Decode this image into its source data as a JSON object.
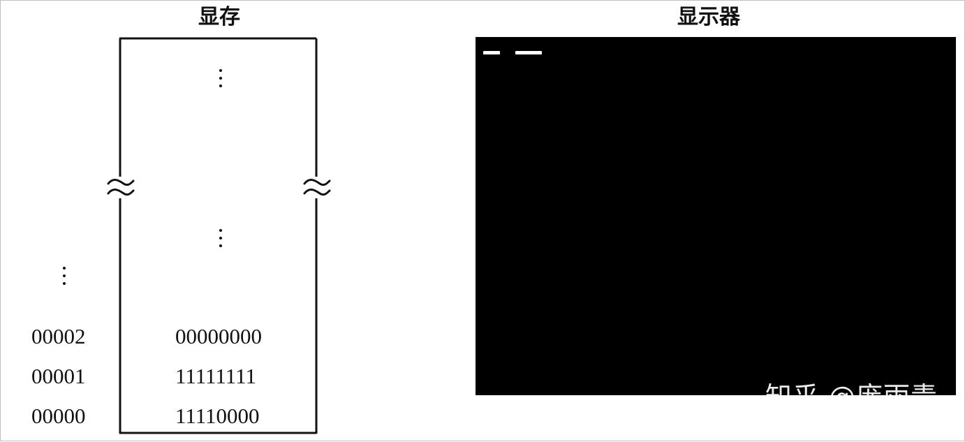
{
  "titles": {
    "memory": "显存",
    "monitor": "显示器"
  },
  "memory": {
    "rows": [
      {
        "address": "00002",
        "value": "00000000"
      },
      {
        "address": "00001",
        "value": "11111111"
      },
      {
        "address": "00000",
        "value": "11110000"
      }
    ]
  },
  "monitor": {
    "cursor_dashes": 2
  },
  "watermark": "知乎 @庞雨青",
  "colors": {
    "screen": "#000000",
    "ink": "#111111",
    "pixel": "#ffffff"
  }
}
